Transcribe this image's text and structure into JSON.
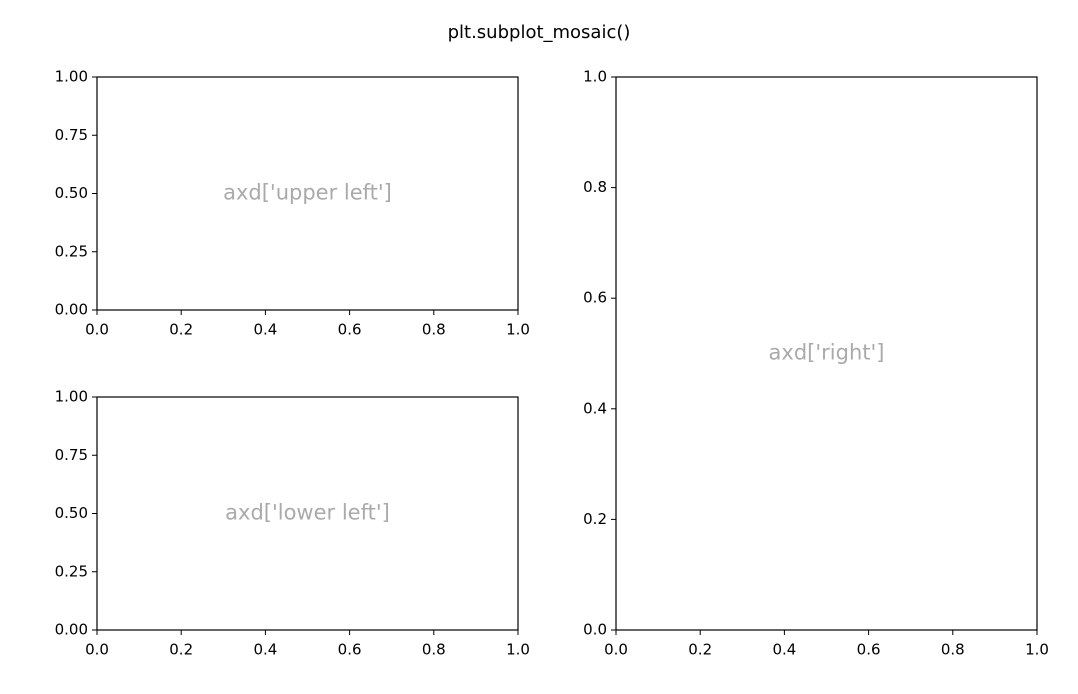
{
  "title": "plt.subplot_mosaic()",
  "chart_data": [
    {
      "type": "line",
      "annotation": "axd['upper left']",
      "xlim": [
        0,
        1
      ],
      "ylim": [
        0,
        1
      ],
      "xticks": [
        {
          "value": 0,
          "label": "0.0"
        },
        0.2,
        0.4,
        0.6,
        0.8,
        {
          "value": 1,
          "label": "1.0"
        }
      ],
      "yticks": [
        {
          "value": 0,
          "label": "0.00"
        },
        0.25,
        {
          "value": 0.5,
          "label": "0.50"
        },
        0.75,
        {
          "value": 1,
          "label": "1.00"
        }
      ]
    },
    {
      "type": "line",
      "annotation": "axd['right']",
      "xlim": [
        0,
        1
      ],
      "ylim": [
        0,
        1
      ],
      "xticks": [
        {
          "value": 0,
          "label": "0.0"
        },
        0.2,
        0.4,
        0.6,
        0.8,
        {
          "value": 1,
          "label": "1.0"
        }
      ],
      "yticks": [
        {
          "value": 0,
          "label": "0.0"
        },
        0.2,
        0.4,
        0.6,
        0.8,
        {
          "value": 1,
          "label": "1.0"
        }
      ]
    },
    {
      "type": "line",
      "annotation": "axd['lower left']",
      "xlim": [
        0,
        1
      ],
      "ylim": [
        0,
        1
      ],
      "xticks": [
        {
          "value": 0,
          "label": "0.0"
        },
        0.2,
        0.4,
        0.6,
        0.8,
        {
          "value": 1,
          "label": "1.0"
        }
      ],
      "yticks": [
        {
          "value": 0,
          "label": "0.00"
        },
        0.25,
        {
          "value": 0.5,
          "label": "0.50"
        },
        0.75,
        {
          "value": 1,
          "label": "1.00"
        }
      ]
    }
  ]
}
